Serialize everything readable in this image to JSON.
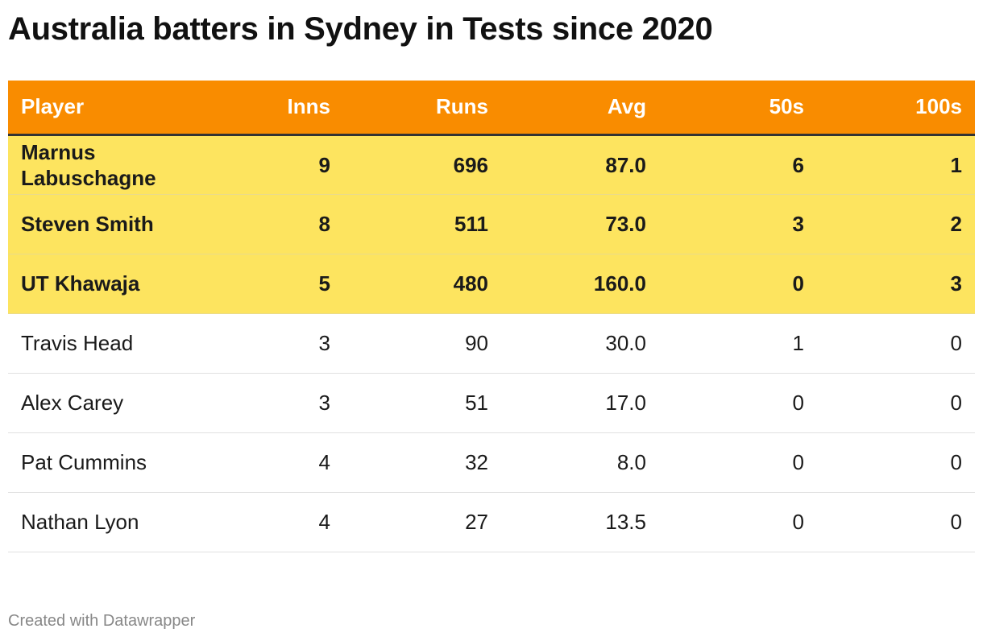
{
  "title": "Australia batters in Sydney in Tests since 2020",
  "credit": "Created with Datawrapper",
  "colors": {
    "header_bg": "#f98c00",
    "highlight_bg": "#fde45f",
    "header_text": "#ffffff"
  },
  "chart_data": {
    "type": "table",
    "title": "Australia batters in Sydney in Tests since 2020",
    "columns": [
      "Player",
      "Inns",
      "Runs",
      "Avg",
      "50s",
      "100s"
    ],
    "rows": [
      {
        "player": "Marnus Labuschagne",
        "inns": "9",
        "runs": "696",
        "avg": "87.0",
        "fifties": "6",
        "hundreds": "1",
        "highlighted": true
      },
      {
        "player": "Steven Smith",
        "inns": "8",
        "runs": "511",
        "avg": "73.0",
        "fifties": "3",
        "hundreds": "2",
        "highlighted": true
      },
      {
        "player": "UT Khawaja",
        "inns": "5",
        "runs": "480",
        "avg": "160.0",
        "fifties": "0",
        "hundreds": "3",
        "highlighted": true
      },
      {
        "player": "Travis Head",
        "inns": "3",
        "runs": "90",
        "avg": "30.0",
        "fifties": "1",
        "hundreds": "0",
        "highlighted": false
      },
      {
        "player": "Alex Carey",
        "inns": "3",
        "runs": "51",
        "avg": "17.0",
        "fifties": "0",
        "hundreds": "0",
        "highlighted": false
      },
      {
        "player": "Pat Cummins",
        "inns": "4",
        "runs": "32",
        "avg": "8.0",
        "fifties": "0",
        "hundreds": "0",
        "highlighted": false
      },
      {
        "player": "Nathan Lyon",
        "inns": "4",
        "runs": "27",
        "avg": "13.5",
        "fifties": "0",
        "hundreds": "0",
        "highlighted": false
      }
    ]
  }
}
